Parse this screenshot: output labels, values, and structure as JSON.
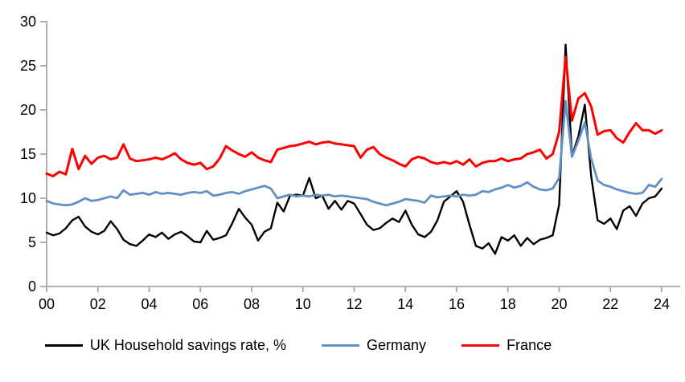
{
  "chart_data": {
    "type": "line",
    "title": "",
    "xlabel": "",
    "ylabel": "",
    "x_description": "Years 2000-2024, quarterly observations",
    "x_tick_labels": [
      "00",
      "02",
      "04",
      "06",
      "08",
      "10",
      "12",
      "14",
      "16",
      "18",
      "20",
      "22",
      "24"
    ],
    "x_tick_every_points": 8,
    "y_ticks": [
      0,
      5,
      10,
      15,
      20,
      25,
      30
    ],
    "ylim": [
      0,
      30
    ],
    "grid": false,
    "legend_position": "bottom",
    "axis_color": "#A6A6A6",
    "tick_label_color": "#000000",
    "series": [
      {
        "name": "UK Household savings rate, %",
        "color": "#000000",
        "stroke_width": 2.4,
        "values": [
          6.1,
          5.8,
          6.0,
          6.6,
          7.5,
          7.9,
          6.8,
          6.2,
          5.9,
          6.3,
          7.4,
          6.5,
          5.3,
          4.8,
          4.6,
          5.2,
          5.9,
          5.6,
          6.1,
          5.4,
          5.9,
          6.2,
          5.7,
          5.1,
          5.0,
          6.3,
          5.3,
          5.5,
          5.8,
          7.2,
          8.8,
          7.8,
          7.0,
          5.2,
          6.2,
          6.6,
          9.5,
          8.5,
          10.3,
          10.4,
          10.3,
          12.3,
          10.0,
          10.3,
          8.8,
          9.7,
          8.7,
          9.7,
          9.4,
          8.2,
          7.0,
          6.4,
          6.6,
          7.2,
          7.7,
          7.3,
          8.6,
          7.0,
          5.9,
          5.6,
          6.2,
          7.5,
          9.6,
          10.2,
          10.8,
          9.6,
          7.0,
          4.6,
          4.3,
          4.9,
          3.7,
          5.6,
          5.2,
          5.8,
          4.6,
          5.5,
          4.8,
          5.3,
          5.5,
          5.8,
          9.3,
          27.4,
          14.8,
          17.0,
          20.6,
          12.5,
          7.5,
          7.1,
          7.7,
          6.5,
          8.6,
          9.1,
          8.0,
          9.4,
          10.0,
          10.2,
          11.1
        ]
      },
      {
        "name": "Germany",
        "color": "#6090C4",
        "stroke_width": 2.8,
        "values": [
          9.7,
          9.4,
          9.3,
          9.2,
          9.3,
          9.6,
          10.0,
          9.7,
          9.8,
          10.0,
          10.2,
          10.0,
          10.9,
          10.4,
          10.5,
          10.6,
          10.4,
          10.7,
          10.5,
          10.6,
          10.5,
          10.4,
          10.6,
          10.7,
          10.6,
          10.8,
          10.3,
          10.4,
          10.6,
          10.7,
          10.5,
          10.8,
          11.0,
          11.2,
          11.4,
          11.1,
          10.0,
          10.2,
          10.4,
          10.2,
          10.3,
          10.2,
          10.4,
          10.3,
          10.4,
          10.2,
          10.3,
          10.2,
          10.1,
          10.0,
          9.9,
          9.6,
          9.4,
          9.2,
          9.4,
          9.6,
          9.9,
          9.8,
          9.7,
          9.5,
          10.3,
          10.1,
          10.2,
          10.3,
          10.2,
          10.4,
          10.3,
          10.4,
          10.8,
          10.7,
          11.0,
          11.2,
          11.5,
          11.2,
          11.4,
          11.8,
          11.3,
          11.0,
          10.9,
          11.1,
          12.3,
          21.0,
          14.7,
          16.5,
          18.6,
          14.5,
          12.0,
          11.5,
          11.3,
          11.0,
          10.8,
          10.6,
          10.5,
          10.6,
          11.5,
          11.3,
          12.2
        ]
      },
      {
        "name": "France",
        "color": "#FF0000",
        "stroke_width": 3.0,
        "values": [
          12.8,
          12.5,
          13.0,
          12.7,
          15.6,
          13.3,
          14.8,
          13.9,
          14.6,
          14.8,
          14.4,
          14.6,
          16.1,
          14.5,
          14.2,
          14.3,
          14.4,
          14.6,
          14.4,
          14.7,
          15.1,
          14.4,
          14.0,
          13.8,
          14.0,
          13.3,
          13.6,
          14.5,
          15.9,
          15.4,
          15.0,
          14.7,
          15.2,
          14.6,
          14.3,
          14.1,
          15.5,
          15.7,
          15.9,
          16.0,
          16.2,
          16.4,
          16.1,
          16.3,
          16.4,
          16.2,
          16.1,
          16.0,
          15.9,
          14.6,
          15.5,
          15.8,
          15.0,
          14.6,
          14.3,
          13.9,
          13.6,
          14.4,
          14.7,
          14.5,
          14.1,
          13.9,
          14.1,
          13.9,
          14.2,
          13.8,
          14.4,
          13.6,
          14.0,
          14.2,
          14.2,
          14.5,
          14.2,
          14.4,
          14.5,
          15.0,
          15.2,
          15.5,
          14.5,
          15.0,
          17.5,
          26.0,
          18.8,
          21.3,
          21.9,
          20.4,
          17.2,
          17.6,
          17.7,
          16.8,
          16.3,
          17.5,
          18.5,
          17.7,
          17.7,
          17.3,
          17.7
        ]
      }
    ]
  },
  "legend": {
    "uk_label": "UK Household savings rate, %",
    "germany_label": "Germany",
    "france_label": "France"
  }
}
